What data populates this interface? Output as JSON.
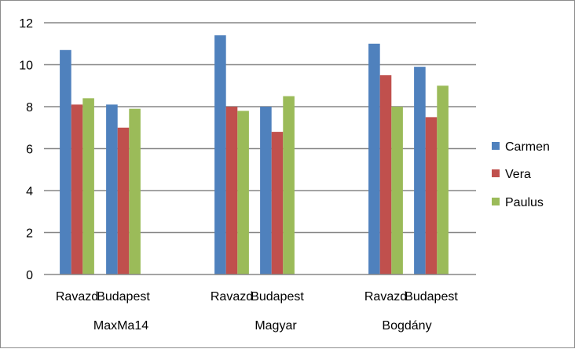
{
  "chart_data": {
    "type": "bar",
    "title": "",
    "xlabel": "",
    "ylabel": "",
    "ylim": [
      0,
      12
    ],
    "yticks": [
      "0",
      "2",
      "4",
      "6",
      "8",
      "10",
      "12"
    ],
    "grid": true,
    "legend_position": "right",
    "groups": [
      {
        "name": "MaxMa14",
        "categories": [
          "Ravazd",
          "Budapest"
        ]
      },
      {
        "name": "Magyar",
        "categories": [
          "Ravazd",
          "Budapest"
        ]
      },
      {
        "name": "Bogdány",
        "categories": [
          "Ravazd",
          "Budapest"
        ]
      }
    ],
    "categories": [
      "Ravazd",
      "Budapest",
      "Ravazd",
      "Budapest",
      "Ravazd",
      "Budapest"
    ],
    "series": [
      {
        "name": "Carmen",
        "color": "#4f81bd",
        "values": [
          10.7,
          8.1,
          11.4,
          8.0,
          11.0,
          9.9
        ]
      },
      {
        "name": "Vera",
        "color": "#c0504d",
        "values": [
          8.1,
          7.0,
          8.0,
          6.8,
          9.5,
          7.5
        ]
      },
      {
        "name": "Paulus",
        "color": "#9bbb59",
        "values": [
          8.4,
          7.9,
          7.8,
          8.5,
          8.0,
          9.0
        ]
      }
    ]
  }
}
